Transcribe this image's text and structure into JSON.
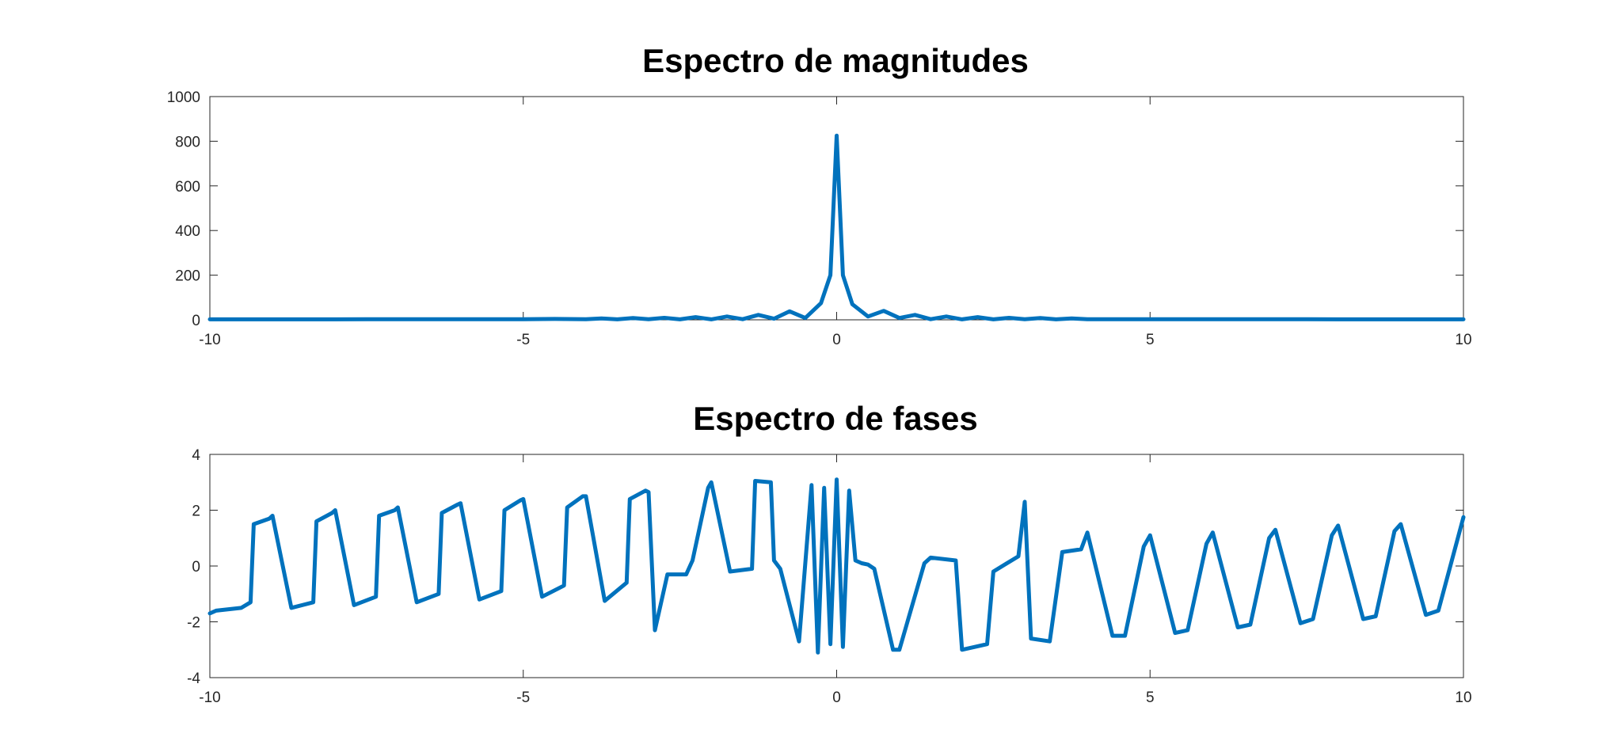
{
  "chart_data": [
    {
      "type": "line",
      "title": "Espectro de magnitudes",
      "xlabel": "",
      "ylabel": "",
      "xlim": [
        -10,
        10
      ],
      "ylim": [
        0,
        1000
      ],
      "xticks": [
        -10,
        -5,
        0,
        5,
        10
      ],
      "yticks": [
        0,
        200,
        400,
        600,
        800,
        1000
      ],
      "xtick_labels": [
        "-10",
        "-5",
        "0",
        "5",
        "10"
      ],
      "ytick_labels": [
        "0",
        "200",
        "400",
        "600",
        "800",
        "1000"
      ],
      "grid": false,
      "color": "#0072BD",
      "series": [
        {
          "x": [
            -10,
            -9.5,
            -9,
            -8.5,
            -8,
            -7.5,
            -7,
            -6.5,
            -6,
            -5.5,
            -5,
            -4.5,
            -4,
            -3.75,
            -3.5,
            -3.25,
            -3,
            -2.75,
            -2.5,
            -2.25,
            -2,
            -1.75,
            -1.5,
            -1.25,
            -1,
            -0.75,
            -0.5,
            -0.25,
            -0.1,
            0,
            0.1,
            0.25,
            0.5,
            0.75,
            1,
            1.25,
            1.5,
            1.75,
            2,
            2.25,
            2.5,
            2.75,
            3,
            3.25,
            3.5,
            3.75,
            4,
            4.5,
            5,
            5.5,
            6,
            6.5,
            7,
            7.5,
            8,
            8.5,
            9,
            9.5,
            10
          ],
          "values": [
            2,
            2,
            2,
            2,
            2,
            3,
            3,
            3,
            3,
            3,
            3,
            4,
            3,
            6,
            2,
            8,
            3,
            9,
            2,
            12,
            2,
            15,
            3,
            22,
            5,
            38,
            8,
            75,
            200,
            825,
            200,
            70,
            15,
            40,
            8,
            22,
            3,
            15,
            2,
            12,
            2,
            9,
            3,
            8,
            2,
            6,
            3,
            3,
            3,
            3,
            3,
            3,
            3,
            3,
            2,
            2,
            2,
            2,
            2
          ]
        }
      ]
    },
    {
      "type": "line",
      "title": "Espectro de fases",
      "xlabel": "",
      "ylabel": "",
      "xlim": [
        -10,
        10
      ],
      "ylim": [
        -4,
        4
      ],
      "xticks": [
        -10,
        -5,
        0,
        5,
        10
      ],
      "yticks": [
        -4,
        -2,
        0,
        2,
        4
      ],
      "xtick_labels": [
        "-10",
        "-5",
        "0",
        "5",
        "10"
      ],
      "ytick_labels": [
        "-4",
        "-2",
        "0",
        "2",
        "4"
      ],
      "grid": false,
      "color": "#0072BD",
      "series": [
        {
          "x": [
            -10,
            -9.9,
            -9.5,
            -9.35,
            -9.3,
            -9.05,
            -9.0,
            -8.7,
            -8.35,
            -8.3,
            -8.05,
            -8.0,
            -7.7,
            -7.35,
            -7.3,
            -7.05,
            -7.0,
            -6.7,
            -6.35,
            -6.3,
            -6.05,
            -6.0,
            -5.7,
            -5.35,
            -5.3,
            -5.05,
            -5.0,
            -4.7,
            -4.35,
            -4.3,
            -4.05,
            -4.0,
            -3.7,
            -3.35,
            -3.3,
            -3.05,
            -3.0,
            -2.9,
            -2.7,
            -2.4,
            -2.3,
            -2.05,
            -2.0,
            -1.7,
            -1.35,
            -1.3,
            -1.05,
            -1.0,
            -0.9,
            -0.6,
            -0.4,
            -0.3,
            -0.2,
            -0.1,
            0,
            0.1,
            0.2,
            0.3,
            0.4,
            0.5,
            0.6,
            0.9,
            1.0,
            1.4,
            1.5,
            1.9,
            2.0,
            2.4,
            2.5,
            2.9,
            3.0,
            3.1,
            3.4,
            3.6,
            3.9,
            4.0,
            4.4,
            4.6,
            4.9,
            5.0,
            5.4,
            5.6,
            5.9,
            6.0,
            6.4,
            6.6,
            6.9,
            7.0,
            7.4,
            7.6,
            7.9,
            8.0,
            8.4,
            8.6,
            8.9,
            9.0,
            9.4,
            9.6,
            10
          ],
          "values": [
            -1.7,
            -1.6,
            -1.5,
            -1.3,
            1.5,
            1.7,
            1.8,
            -1.5,
            -1.3,
            1.6,
            1.9,
            2.0,
            -1.4,
            -1.1,
            1.8,
            2.0,
            2.1,
            -1.3,
            -1.0,
            1.9,
            2.2,
            2.25,
            -1.2,
            -0.9,
            2.0,
            2.35,
            2.4,
            -1.1,
            -0.7,
            2.1,
            2.5,
            2.5,
            -1.25,
            -0.6,
            2.4,
            2.7,
            2.65,
            -2.3,
            -0.3,
            -0.3,
            0.2,
            2.8,
            3.0,
            -0.2,
            -0.1,
            3.05,
            3.0,
            0.2,
            -0.1,
            -2.7,
            2.9,
            -3.1,
            2.8,
            -2.8,
            3.1,
            -2.9,
            2.7,
            0.2,
            0.1,
            0.05,
            -0.1,
            -3.0,
            -3.0,
            0.1,
            0.3,
            0.2,
            -3.0,
            -2.8,
            -0.2,
            0.35,
            2.3,
            -2.6,
            -2.7,
            0.5,
            0.6,
            1.2,
            -2.5,
            -2.5,
            0.7,
            1.1,
            -2.4,
            -2.3,
            0.8,
            1.2,
            -2.2,
            -2.1,
            1.0,
            1.3,
            -2.05,
            -1.9,
            1.1,
            1.45,
            -1.9,
            -1.8,
            1.25,
            1.5,
            -1.75,
            -1.6,
            1.75
          ]
        }
      ]
    }
  ]
}
